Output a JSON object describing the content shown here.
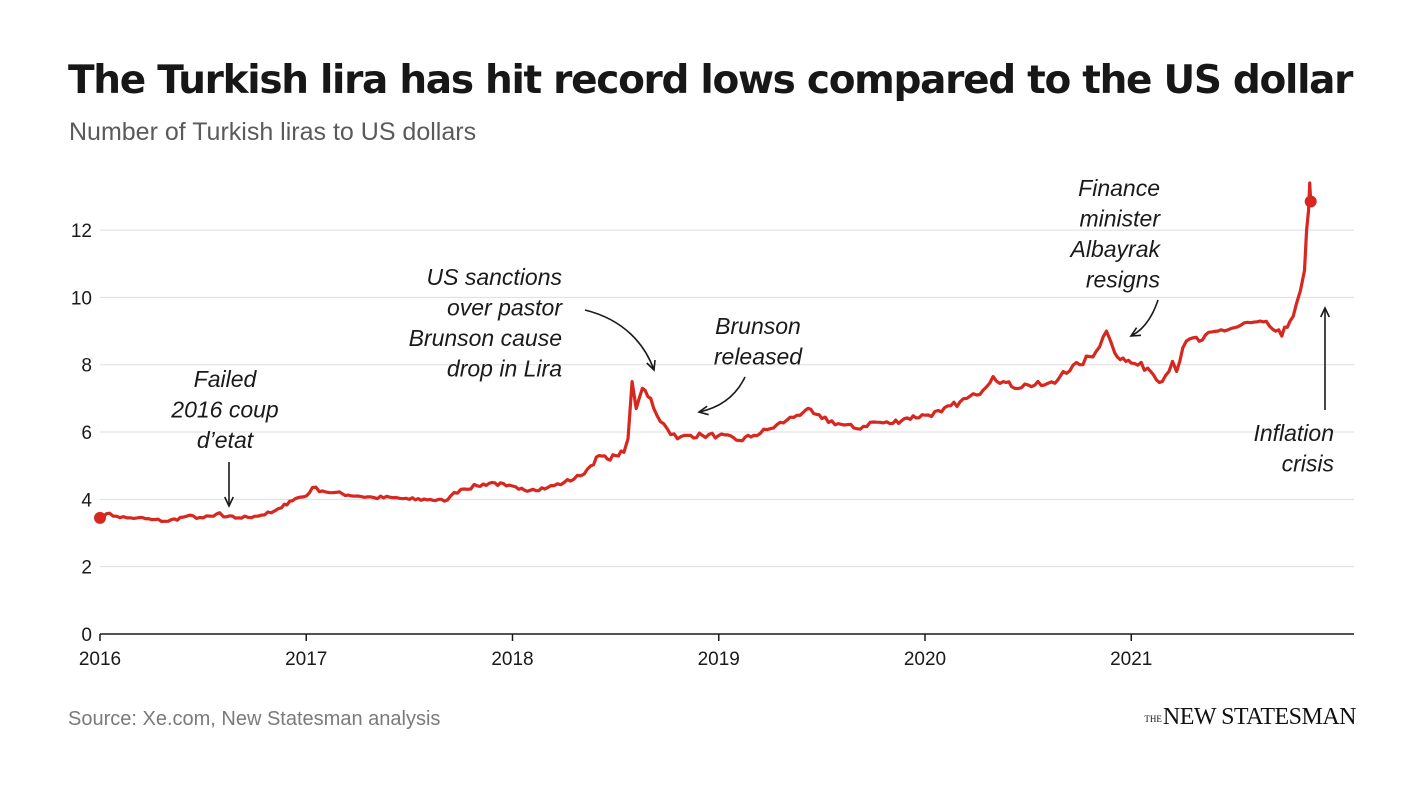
{
  "title": "The Turkish lira has hit record lows compared to the US dollar",
  "subtitle": "Number of Turkish liras to US dollars",
  "source": "Source: Xe.com, New Statesman analysis",
  "logo": {
    "small": "THE",
    "main": "NEW STATESMAN"
  },
  "colors": {
    "line": "#d7271e",
    "grid": "#dedede",
    "axis": "#1a1a1a",
    "arrow": "#1a1a1a"
  },
  "chart_data": {
    "type": "line",
    "title": "The Turkish lira has hit record lows compared to the US dollar",
    "subtitle": "Number of Turkish liras to US dollars",
    "xlabel": "",
    "ylabel": "",
    "xlim": [
      2016,
      2022.08
    ],
    "ylim": [
      0,
      13.4
    ],
    "yticks": [
      0,
      2,
      4,
      6,
      8,
      10,
      12
    ],
    "xticks": [
      "2016",
      "2017",
      "2018",
      "2019",
      "2020",
      "2021"
    ],
    "grid": true,
    "legend": "none",
    "series": [
      {
        "x": [
          2016.0,
          2016.03,
          2016.08,
          2016.13,
          2016.18,
          2016.25,
          2016.33,
          2016.42,
          2016.5,
          2016.55,
          2016.58,
          2016.6,
          2016.67,
          2016.75,
          2016.83,
          2016.88,
          2016.92,
          2016.96,
          2017.0,
          2017.03,
          2017.08,
          2017.13,
          2017.25,
          2017.33,
          2017.42,
          2017.5,
          2017.6,
          2017.67,
          2017.7,
          2017.75,
          2017.83,
          2017.9,
          2017.97,
          2018.03,
          2018.1,
          2018.17,
          2018.25,
          2018.33,
          2018.38,
          2018.42,
          2018.46,
          2018.5,
          2018.54,
          2018.56,
          2018.58,
          2018.6,
          2018.63,
          2018.67,
          2018.7,
          2018.75,
          2018.8,
          2018.85,
          2018.92,
          2019.0,
          2019.1,
          2019.17,
          2019.25,
          2019.33,
          2019.38,
          2019.42,
          2019.46,
          2019.5,
          2019.58,
          2019.67,
          2019.75,
          2019.83,
          2019.9,
          2020.0,
          2020.08,
          2020.17,
          2020.25,
          2020.33,
          2020.38,
          2020.42,
          2020.5,
          2020.58,
          2020.63,
          2020.67,
          2020.75,
          2020.83,
          2020.88,
          2020.9,
          2020.92,
          2020.96,
          2021.0,
          2021.08,
          2021.15,
          2021.2,
          2021.22,
          2021.25,
          2021.3,
          2021.33,
          2021.42,
          2021.5,
          2021.58,
          2021.67,
          2021.73,
          2021.77,
          2021.8,
          2021.82,
          2021.84,
          2021.85,
          2021.86,
          2021.865,
          2021.87
        ],
        "y": [
          3.45,
          3.57,
          3.5,
          3.45,
          3.45,
          3.4,
          3.35,
          3.5,
          3.45,
          3.5,
          3.6,
          3.48,
          3.45,
          3.5,
          3.6,
          3.75,
          3.95,
          4.05,
          4.1,
          4.35,
          4.25,
          4.2,
          4.1,
          4.05,
          4.05,
          4.0,
          4.0,
          3.95,
          4.1,
          4.3,
          4.4,
          4.5,
          4.4,
          4.3,
          4.3,
          4.35,
          4.5,
          4.7,
          5.0,
          5.3,
          5.2,
          5.3,
          5.4,
          5.8,
          7.5,
          6.7,
          7.3,
          7.0,
          6.5,
          6.1,
          5.8,
          5.9,
          5.9,
          5.9,
          5.75,
          5.9,
          6.1,
          6.35,
          6.5,
          6.65,
          6.55,
          6.4,
          6.25,
          6.1,
          6.3,
          6.25,
          6.4,
          6.5,
          6.6,
          6.9,
          7.1,
          7.65,
          7.5,
          7.35,
          7.4,
          7.4,
          7.45,
          7.8,
          8.0,
          8.4,
          9.0,
          8.7,
          8.35,
          8.2,
          8.05,
          7.9,
          7.5,
          8.1,
          7.8,
          8.5,
          8.8,
          8.7,
          9.0,
          9.1,
          9.25,
          9.15,
          8.85,
          9.3,
          9.8,
          10.2,
          10.8,
          12.0,
          12.6,
          13.4,
          12.85
        ]
      }
    ],
    "annotations": [
      {
        "id": "coup",
        "text": [
          "Failed",
          "2016 coup",
          "d’etat"
        ]
      },
      {
        "id": "sanctions",
        "text": [
          "US sanctions",
          "over pastor",
          "Brunson cause",
          "drop in Lira"
        ]
      },
      {
        "id": "brunson",
        "text": [
          "Brunson",
          "released"
        ]
      },
      {
        "id": "albayrak",
        "text": [
          "Finance",
          "minister",
          "Albayrak",
          "resigns"
        ]
      },
      {
        "id": "inflation",
        "text": [
          "Inflation",
          "crisis"
        ]
      }
    ]
  }
}
